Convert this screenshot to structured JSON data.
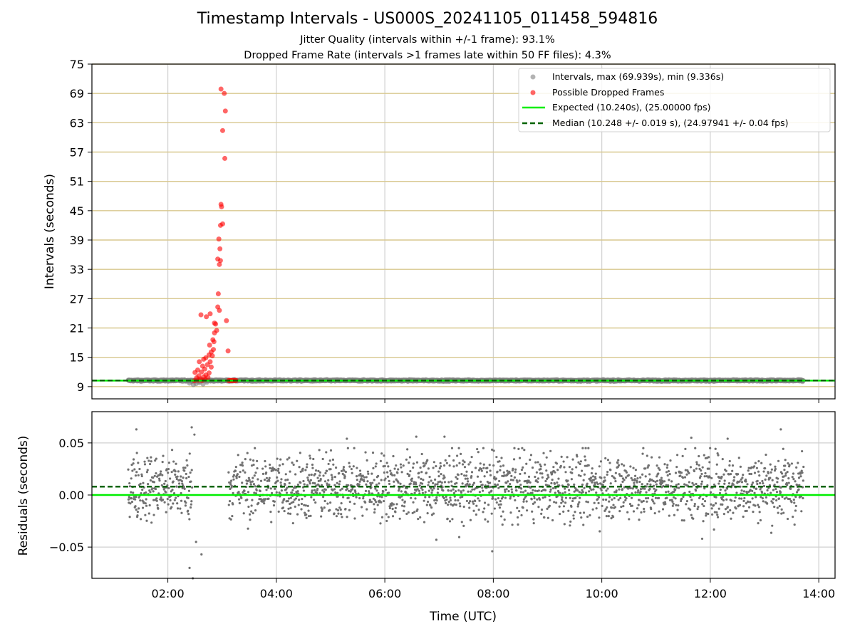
{
  "chart_data": [
    {
      "type": "scatter",
      "title": "Timestamp Intervals - US000S_20241105_011458_594816",
      "subtitle_1": "Jitter Quality (intervals within +/-1 frame): 93.1%",
      "subtitle_2": "Dropped Frame Rate (intervals >1 frames late within 50 FF files): 4.3%",
      "xlabel": "",
      "ylabel": "Intervals (seconds)",
      "ylim": [
        6.5,
        75
      ],
      "xlim_hours": [
        0.6,
        14.3
      ],
      "yticks": [
        "9",
        "15",
        "21",
        "27",
        "33",
        "39",
        "45",
        "51",
        "57",
        "63",
        "69",
        "75"
      ],
      "ytick_values": [
        9,
        15,
        21,
        27,
        33,
        39,
        45,
        51,
        57,
        63,
        69,
        75
      ],
      "grid": true,
      "horizontal_reference_lines": [
        9,
        15,
        21,
        27,
        33,
        39,
        45,
        51,
        57,
        63,
        69,
        75
      ],
      "legend_position": "top-right",
      "legend": [
        {
          "label": "Intervals, max (69.939s), min (9.336s)",
          "marker": "dot",
          "color": "#808080"
        },
        {
          "label": "Possible Dropped Frames",
          "marker": "dot",
          "color": "#ff0000"
        },
        {
          "label": "Expected (10.240s), (25.00000 fps)",
          "marker": "solid",
          "color": "#00ee00"
        },
        {
          "label": "Median (10.248 +/- 0.019 s), (24.97941 +/- 0.04 fps)",
          "marker": "dashed",
          "color": "#006400"
        }
      ],
      "expected_interval": 10.24,
      "median_interval": 10.248,
      "series": [
        {
          "name": "Intervals, max (69.939s), min (9.336s)",
          "color": "#808080",
          "x_range_hours": [
            1.27,
            13.72
          ],
          "value_approx": 10.25,
          "low_points": [
            [
              2.4,
              9.7
            ],
            [
              2.47,
              9.4
            ],
            [
              2.52,
              9.6
            ],
            [
              2.58,
              9.8
            ],
            [
              2.65,
              9.5
            ],
            [
              2.72,
              9.9
            ]
          ]
        },
        {
          "name": "Possible Dropped Frames",
          "color": "#ff0000",
          "points": [
            [
              2.98,
              69.9
            ],
            [
              3.04,
              69.0
            ],
            [
              3.06,
              65.4
            ],
            [
              3.01,
              61.4
            ],
            [
              3.05,
              55.7
            ],
            [
              2.98,
              46.3
            ],
            [
              2.99,
              45.8
            ],
            [
              3.01,
              42.3
            ],
            [
              2.97,
              42.0
            ],
            [
              2.94,
              39.2
            ],
            [
              2.96,
              37.2
            ],
            [
              2.92,
              35.1
            ],
            [
              2.97,
              34.8
            ],
            [
              2.95,
              34.0
            ],
            [
              2.93,
              28.0
            ],
            [
              2.92,
              25.3
            ],
            [
              2.95,
              24.6
            ],
            [
              2.61,
              23.7
            ],
            [
              2.71,
              23.3
            ],
            [
              2.78,
              23.9
            ],
            [
              3.08,
              22.5
            ],
            [
              2.86,
              22.0
            ],
            [
              2.88,
              21.8
            ],
            [
              2.9,
              20.5
            ],
            [
              2.86,
              20.0
            ],
            [
              2.83,
              18.6
            ],
            [
              2.85,
              18.2
            ],
            [
              2.77,
              17.5
            ],
            [
              2.84,
              16.6
            ],
            [
              2.8,
              16.1
            ],
            [
              3.11,
              16.3
            ],
            [
              2.76,
              15.5
            ],
            [
              2.82,
              15.3
            ],
            [
              2.7,
              14.9
            ],
            [
              2.66,
              14.6
            ],
            [
              2.78,
              14.1
            ],
            [
              2.58,
              14.1
            ],
            [
              2.73,
              13.5
            ],
            [
              2.64,
              13.2
            ],
            [
              2.8,
              13.0
            ],
            [
              2.68,
              12.6
            ],
            [
              2.55,
              12.4
            ],
            [
              2.62,
              12.0
            ],
            [
              2.76,
              11.8
            ],
            [
              2.5,
              11.9
            ],
            [
              2.7,
              11.4
            ],
            [
              2.66,
              11.0
            ],
            [
              2.57,
              11.2
            ],
            [
              2.74,
              10.9
            ],
            [
              2.53,
              10.8
            ],
            [
              2.6,
              10.6
            ],
            [
              2.69,
              10.5
            ],
            [
              2.56,
              10.3
            ],
            [
              2.63,
              10.25
            ],
            [
              2.49,
              10.2
            ],
            [
              3.12,
              10.25
            ],
            [
              3.14,
              10.25
            ],
            [
              3.16,
              10.25
            ],
            [
              3.18,
              10.25
            ],
            [
              3.2,
              10.25
            ],
            [
              3.22,
              10.25
            ],
            [
              3.24,
              10.25
            ],
            [
              3.26,
              10.25
            ]
          ]
        }
      ]
    },
    {
      "type": "scatter",
      "xlabel": "Time (UTC)",
      "ylabel": "Residuals (seconds)",
      "ylim": [
        -0.08,
        0.08
      ],
      "yticks": [
        "0.05",
        "0.00",
        "−0.05"
      ],
      "ytick_values": [
        0.05,
        0.0,
        -0.05
      ],
      "xticks": [
        "02:00",
        "04:00",
        "06:00",
        "08:00",
        "10:00",
        "12:00",
        "14:00"
      ],
      "xtick_values": [
        2,
        4,
        6,
        8,
        10,
        12,
        14
      ],
      "grid": true,
      "expected_residual": 0.0,
      "median_residual": 0.008,
      "series": [
        {
          "name": "Residuals",
          "color": "#707070",
          "segments_hours": [
            [
              1.27,
              2.45
            ],
            [
              3.12,
              13.72
            ]
          ],
          "band": [
            -0.03,
            0.045
          ],
          "center": 0.008,
          "outliers": [
            [
              1.42,
              0.063
            ],
            [
              2.44,
              0.065
            ],
            [
              2.49,
              0.058
            ],
            [
              2.46,
              -0.08
            ],
            [
              2.4,
              -0.07
            ],
            [
              2.62,
              -0.057
            ],
            [
              2.52,
              -0.045
            ],
            [
              7.98,
              -0.054
            ],
            [
              13.3,
              0.063
            ],
            [
              6.58,
              0.056
            ],
            [
              7.1,
              0.056
            ],
            [
              5.3,
              0.054
            ],
            [
              11.65,
              0.055
            ],
            [
              12.32,
              0.054
            ],
            [
              11.85,
              -0.042
            ],
            [
              6.95,
              -0.043
            ]
          ]
        }
      ]
    }
  ]
}
